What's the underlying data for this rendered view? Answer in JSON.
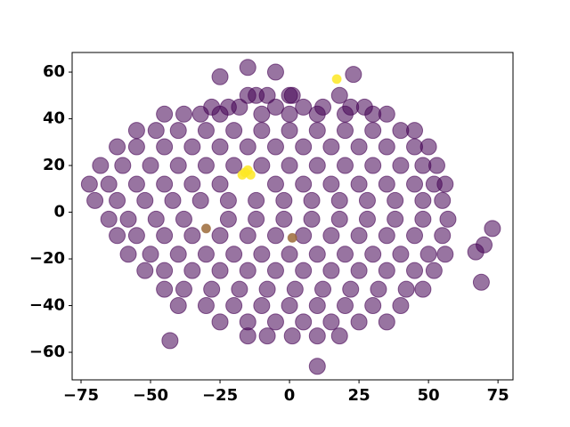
{
  "chart_data": {
    "type": "scatter",
    "xlim": [
      -78.2,
      80.4
    ],
    "ylim": [
      -71.8,
      68.4
    ],
    "xticks": [
      {
        "value": -75,
        "label": "−75"
      },
      {
        "value": -50,
        "label": "−50"
      },
      {
        "value": -25,
        "label": "−25"
      },
      0,
      25,
      50,
      75
    ],
    "yticks": [
      {
        "value": -60,
        "label": "−60"
      },
      {
        "value": -40,
        "label": "−40"
      },
      {
        "value": -20,
        "label": "−20"
      },
      0,
      20,
      40,
      60
    ],
    "series": [
      {
        "color": "#440154",
        "x": [
          -15,
          -12,
          -8,
          0,
          1,
          18,
          -28,
          -22,
          -18,
          -5,
          5,
          12,
          22,
          27,
          -45,
          -38,
          -32,
          -25,
          -10,
          0,
          10,
          20,
          30,
          35,
          -55,
          -48,
          -40,
          -30,
          -20,
          -10,
          0,
          10,
          20,
          30,
          40,
          45,
          -62,
          -55,
          -45,
          -35,
          -25,
          -15,
          -5,
          5,
          15,
          25,
          35,
          45,
          50,
          -68,
          -60,
          -50,
          -40,
          -30,
          -20,
          -10,
          0,
          10,
          20,
          30,
          40,
          48,
          53,
          -72,
          -65,
          -55,
          -45,
          -35,
          -25,
          -5,
          5,
          15,
          25,
          35,
          45,
          52,
          56,
          -70,
          -62,
          -52,
          -42,
          -32,
          -22,
          -12,
          -2,
          8,
          18,
          28,
          38,
          48,
          55,
          -65,
          -58,
          -48,
          -38,
          -22,
          -12,
          -2,
          8,
          18,
          28,
          38,
          48,
          57,
          -62,
          -55,
          -45,
          -35,
          -25,
          -15,
          -5,
          5,
          15,
          25,
          35,
          45,
          55,
          -58,
          -50,
          -40,
          -30,
          -20,
          -10,
          0,
          10,
          20,
          30,
          40,
          50,
          56,
          -52,
          -45,
          -35,
          -25,
          -15,
          -5,
          5,
          15,
          25,
          35,
          45,
          52,
          -45,
          -38,
          -28,
          -18,
          -8,
          2,
          12,
          22,
          32,
          42,
          48,
          -40,
          -30,
          -20,
          -10,
          0,
          10,
          20,
          30,
          40,
          -25,
          -15,
          -5,
          5,
          15,
          25,
          35,
          -15,
          -8,
          1,
          10,
          18,
          -15,
          -25,
          -5,
          23,
          -43,
          10,
          73,
          70,
          67,
          69
        ],
        "values": [
          50,
          50,
          50,
          50,
          50,
          50,
          45,
          45,
          45,
          45,
          45,
          45,
          45,
          45,
          42,
          42,
          42,
          42,
          42,
          42,
          42,
          42,
          42,
          42,
          35,
          35,
          35,
          35,
          35,
          35,
          35,
          35,
          35,
          35,
          35,
          35,
          28,
          28,
          28,
          28,
          28,
          28,
          28,
          28,
          28,
          28,
          28,
          28,
          28,
          20,
          20,
          20,
          20,
          20,
          20,
          20,
          20,
          20,
          20,
          20,
          20,
          20,
          20,
          12,
          12,
          12,
          12,
          12,
          12,
          12,
          12,
          12,
          12,
          12,
          12,
          12,
          12,
          5,
          5,
          5,
          5,
          5,
          5,
          5,
          5,
          5,
          5,
          5,
          5,
          5,
          5,
          -3,
          -3,
          -3,
          -3,
          -3,
          -3,
          -3,
          -3,
          -3,
          -3,
          -3,
          -3,
          -3,
          -10,
          -10,
          -10,
          -10,
          -10,
          -10,
          -10,
          -10,
          -10,
          -10,
          -10,
          -10,
          -10,
          -18,
          -18,
          -18,
          -18,
          -18,
          -18,
          -18,
          -18,
          -18,
          -18,
          -18,
          -18,
          -18,
          -25,
          -25,
          -25,
          -25,
          -25,
          -25,
          -25,
          -25,
          -25,
          -25,
          -25,
          -25,
          -33,
          -33,
          -33,
          -33,
          -33,
          -33,
          -33,
          -33,
          -33,
          -33,
          -33,
          -40,
          -40,
          -40,
          -40,
          -40,
          -40,
          -40,
          -40,
          -40,
          -47,
          -47,
          -47,
          -47,
          -47,
          -47,
          -47,
          -53,
          -53,
          -53,
          -53,
          -53,
          62,
          58,
          60,
          59,
          -55,
          -66,
          -7,
          -14,
          -17,
          -30
        ]
      },
      {
        "color": "#9c6b3a",
        "x": [
          -30,
          1
        ],
        "values": [
          -7,
          -11
        ]
      },
      {
        "color": "#fde725",
        "x": [
          -16,
          -14,
          -17,
          -15,
          17
        ],
        "values": [
          17,
          16,
          16,
          18,
          57
        ]
      }
    ]
  }
}
